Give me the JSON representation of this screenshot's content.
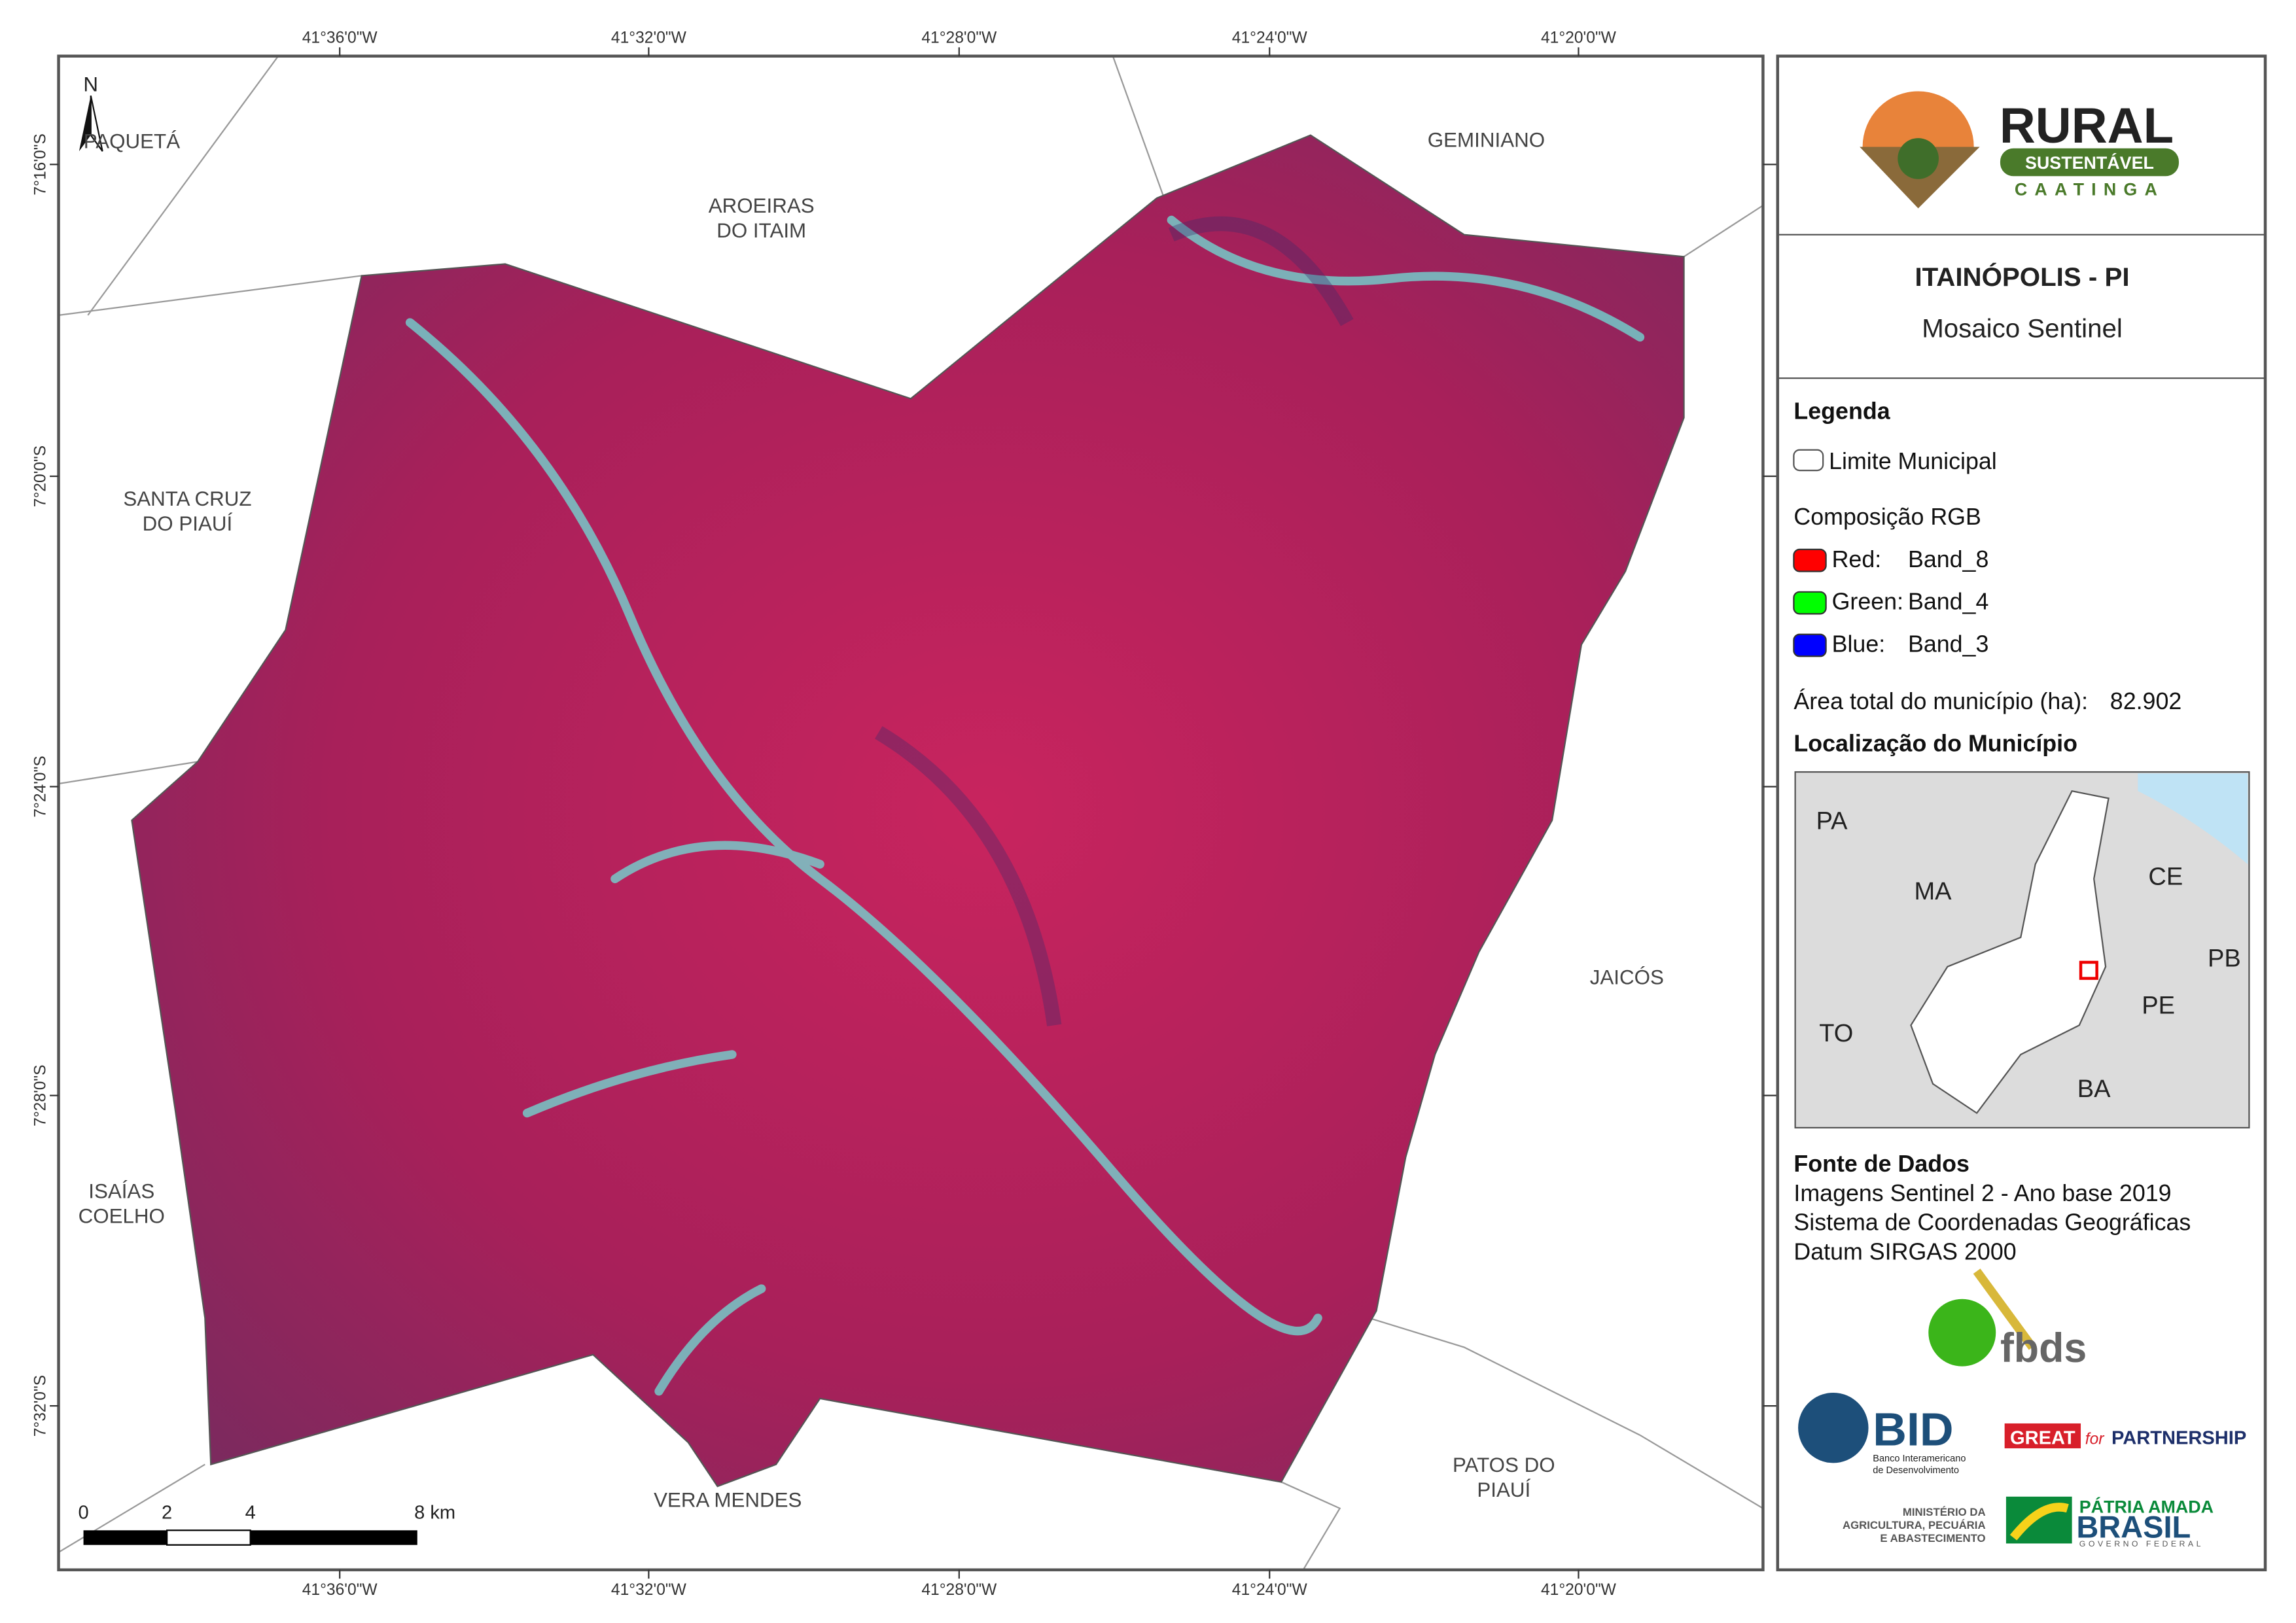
{
  "map": {
    "longitudes": [
      "41°36'0\"W",
      "41°32'0\"W",
      "41°28'0\"W",
      "41°24'0\"W",
      "41°20'0\"W"
    ],
    "latitudes": [
      "7°16'0\"S",
      "7°20'0\"S",
      "7°24'0\"S",
      "7°28'0\"S",
      "7°32'0\"S"
    ],
    "north": "N",
    "places": [
      {
        "lines": [
          "PAQUETÁ"
        ]
      },
      {
        "lines": [
          "AROEIRAS",
          "DO ITAIM"
        ]
      },
      {
        "lines": [
          "GEMINIANO"
        ]
      },
      {
        "lines": [
          "SANTA CRUZ",
          "DO PIAUÍ"
        ]
      },
      {
        "lines": [
          "JAICÓS"
        ]
      },
      {
        "lines": [
          "ISAÍAS",
          "COELHO"
        ]
      },
      {
        "lines": [
          "VERA MENDES"
        ]
      },
      {
        "lines": [
          "PATOS DO",
          "PIAUÍ"
        ]
      }
    ],
    "scale_bar": [
      "0",
      "2",
      "4",
      "8 km"
    ]
  },
  "panel": {
    "logo": {
      "word": "RURAL",
      "band": "SUSTENTÁVEL",
      "sub": "CAATINGA"
    },
    "title": "ITAINÓPOLIS - PI",
    "subtitle": "Mosaico Sentinel",
    "legend": {
      "heading": "Legenda",
      "boundary": "Limite Municipal",
      "composition": "Composição RGB",
      "bands": [
        {
          "channel": "Red:",
          "band": "Band_8",
          "color": "#ff0000"
        },
        {
          "channel": "Green:",
          "band": "Band_4",
          "color": "#00ff00"
        },
        {
          "channel": "Blue:",
          "band": "Band_3",
          "color": "#0000ff"
        }
      ],
      "area_label": "Área total do município (ha):",
      "area_value": "82.902"
    },
    "location": {
      "heading": "Localização do Município",
      "labels": [
        "PA",
        "MA",
        "CE",
        "PB",
        "PE",
        "TO",
        "BA"
      ]
    },
    "sources": {
      "heading": "Fonte de Dados",
      "lines": [
        "Imagens Sentinel 2 - Ano base 2019",
        "Sistema de Coordenadas Geográficas",
        "Datum SIRGAS 2000"
      ]
    },
    "partners": {
      "fbds": "fbds",
      "bid": "BID",
      "bid_name": [
        "Banco Interamericano",
        "de Desenvolvimento"
      ],
      "great": "GREAT",
      "for": "for",
      "partnership": "PARTNERSHIP",
      "ministry": [
        "MINISTÉRIO DA",
        "AGRICULTURA, PECUÁRIA",
        "E ABASTECIMENTO"
      ],
      "patria": "PÁTRIA AMADA",
      "brasil": "BRASIL",
      "gov": "GOVERNO FEDERAL"
    }
  }
}
